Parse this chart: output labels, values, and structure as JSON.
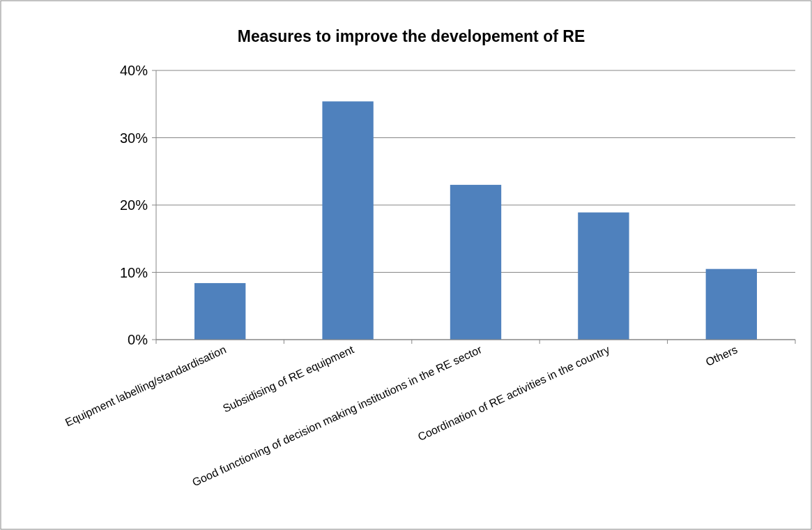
{
  "chart_data": {
    "type": "bar",
    "title": "Measures to improve the developement of RE",
    "categories": [
      "Equipment labelling/standardisation",
      "Subsidising of RE equipment",
      "Good functioning of decision making institutions in the RE sector",
      "Coordination of RE activities in the country",
      "Others"
    ],
    "values": [
      8.4,
      35.4,
      23.0,
      18.9,
      10.5
    ],
    "color": "#4f81bd",
    "ylim": [
      0,
      40
    ],
    "yticks": [
      {
        "value": 0,
        "label": "0%"
      },
      {
        "value": 10,
        "label": "10%"
      },
      {
        "value": 20,
        "label": "20%"
      },
      {
        "value": 30,
        "label": "30%"
      },
      {
        "value": 40,
        "label": "40%"
      }
    ],
    "grid": "y"
  }
}
